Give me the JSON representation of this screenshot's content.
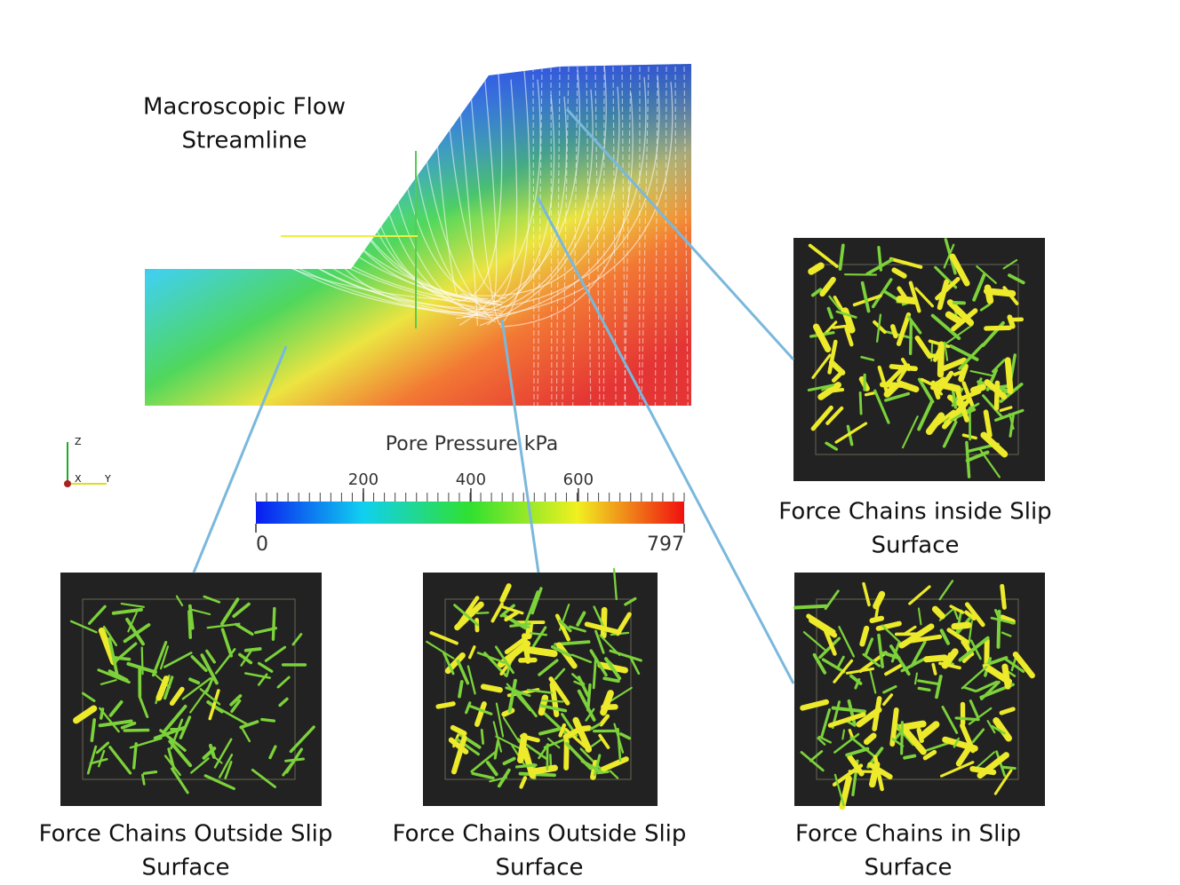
{
  "title": [
    "Macroscopic Flow",
    "Streamline"
  ],
  "colorbar": {
    "label": "Pore Pressure kPa",
    "range": [
      0,
      797
    ],
    "ticks": [
      0,
      200,
      400,
      600,
      797
    ]
  },
  "axes_triad": {
    "z": "Z",
    "x": "X",
    "y": "Y"
  },
  "panels": [
    {
      "caption": [
        "Force Chains inside Slip",
        "Surface"
      ]
    },
    {
      "caption": [
        "Force Chains Outside Slip",
        "Surface"
      ]
    },
    {
      "caption": [
        "Force Chains Outside Slip",
        "Surface"
      ]
    },
    {
      "caption": [
        "Force Chains in Slip",
        "Surface"
      ]
    }
  ]
}
